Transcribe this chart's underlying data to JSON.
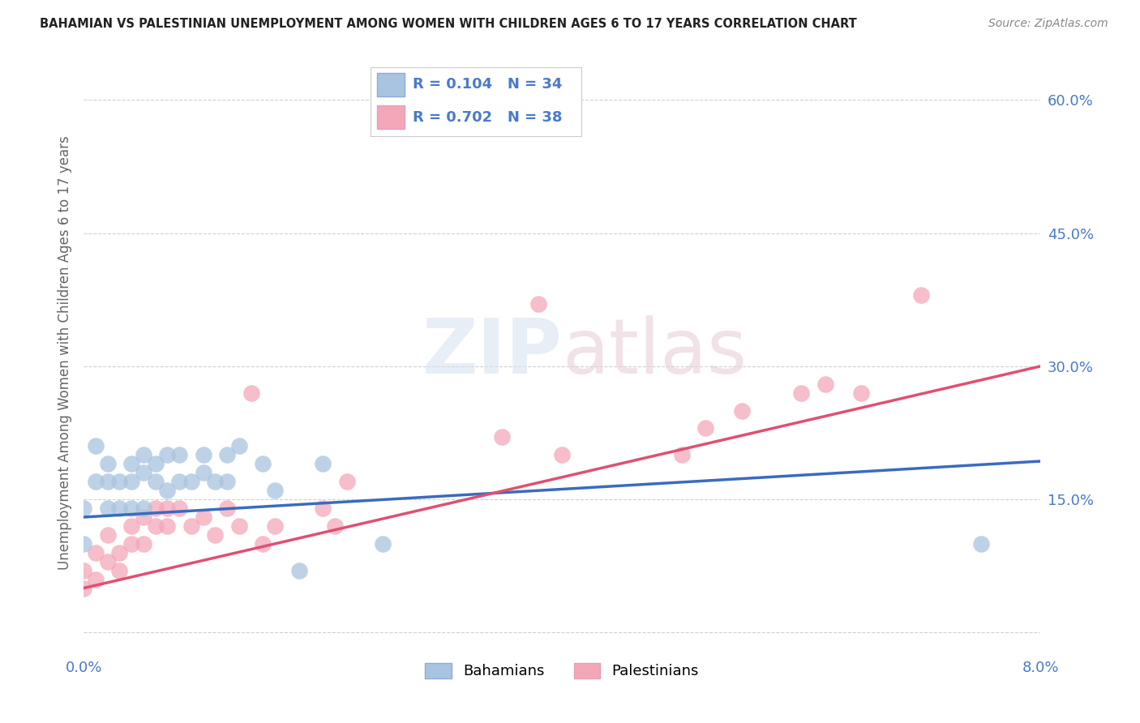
{
  "title": "BAHAMIAN VS PALESTINIAN UNEMPLOYMENT AMONG WOMEN WITH CHILDREN AGES 6 TO 17 YEARS CORRELATION CHART",
  "source": "Source: ZipAtlas.com",
  "ylabel": "Unemployment Among Women with Children Ages 6 to 17 years",
  "xlim": [
    0.0,
    0.08
  ],
  "ylim": [
    -0.02,
    0.65
  ],
  "yticks": [
    0.0,
    0.15,
    0.3,
    0.45,
    0.6
  ],
  "ytick_labels": [
    "",
    "15.0%",
    "30.0%",
    "45.0%",
    "60.0%"
  ],
  "xtick_left": "0.0%",
  "xtick_right": "8.0%",
  "legend_R_bahamian": "0.104",
  "legend_N_bahamian": "34",
  "legend_R_palestinian": "0.702",
  "legend_N_palestinian": "38",
  "color_bahamian": "#a8c4e0",
  "color_palestinian": "#f4a7b9",
  "line_color_bahamian": "#3a6bbf",
  "line_color_palestinian": "#e05070",
  "tick_color": "#4a7acc",
  "background_color": "#ffffff",
  "bahamian_x": [
    0.0,
    0.0,
    0.001,
    0.001,
    0.002,
    0.002,
    0.002,
    0.003,
    0.003,
    0.004,
    0.004,
    0.004,
    0.005,
    0.005,
    0.005,
    0.006,
    0.006,
    0.007,
    0.007,
    0.008,
    0.008,
    0.009,
    0.01,
    0.01,
    0.011,
    0.012,
    0.012,
    0.013,
    0.015,
    0.016,
    0.018,
    0.02,
    0.025,
    0.075
  ],
  "bahamian_y": [
    0.14,
    0.1,
    0.21,
    0.17,
    0.19,
    0.17,
    0.14,
    0.17,
    0.14,
    0.19,
    0.17,
    0.14,
    0.2,
    0.18,
    0.14,
    0.19,
    0.17,
    0.2,
    0.16,
    0.2,
    0.17,
    0.17,
    0.2,
    0.18,
    0.17,
    0.2,
    0.17,
    0.21,
    0.19,
    0.16,
    0.07,
    0.19,
    0.1,
    0.1
  ],
  "palestinian_x": [
    0.0,
    0.0,
    0.001,
    0.001,
    0.002,
    0.002,
    0.003,
    0.003,
    0.004,
    0.004,
    0.005,
    0.005,
    0.006,
    0.006,
    0.007,
    0.007,
    0.008,
    0.009,
    0.01,
    0.011,
    0.012,
    0.013,
    0.014,
    0.015,
    0.016,
    0.02,
    0.021,
    0.022,
    0.035,
    0.038,
    0.04,
    0.05,
    0.052,
    0.055,
    0.06,
    0.062,
    0.065,
    0.07
  ],
  "palestinian_y": [
    0.05,
    0.07,
    0.09,
    0.06,
    0.11,
    0.08,
    0.09,
    0.07,
    0.12,
    0.1,
    0.13,
    0.1,
    0.14,
    0.12,
    0.14,
    0.12,
    0.14,
    0.12,
    0.13,
    0.11,
    0.14,
    0.12,
    0.27,
    0.1,
    0.12,
    0.14,
    0.12,
    0.17,
    0.22,
    0.37,
    0.2,
    0.2,
    0.23,
    0.25,
    0.27,
    0.28,
    0.27,
    0.38
  ],
  "bah_line_x0": 0.0,
  "bah_line_y0": 0.13,
  "bah_line_x1": 0.08,
  "bah_line_y1": 0.193,
  "pal_line_x0": 0.0,
  "pal_line_y0": 0.05,
  "pal_line_x1": 0.08,
  "pal_line_y1": 0.3
}
